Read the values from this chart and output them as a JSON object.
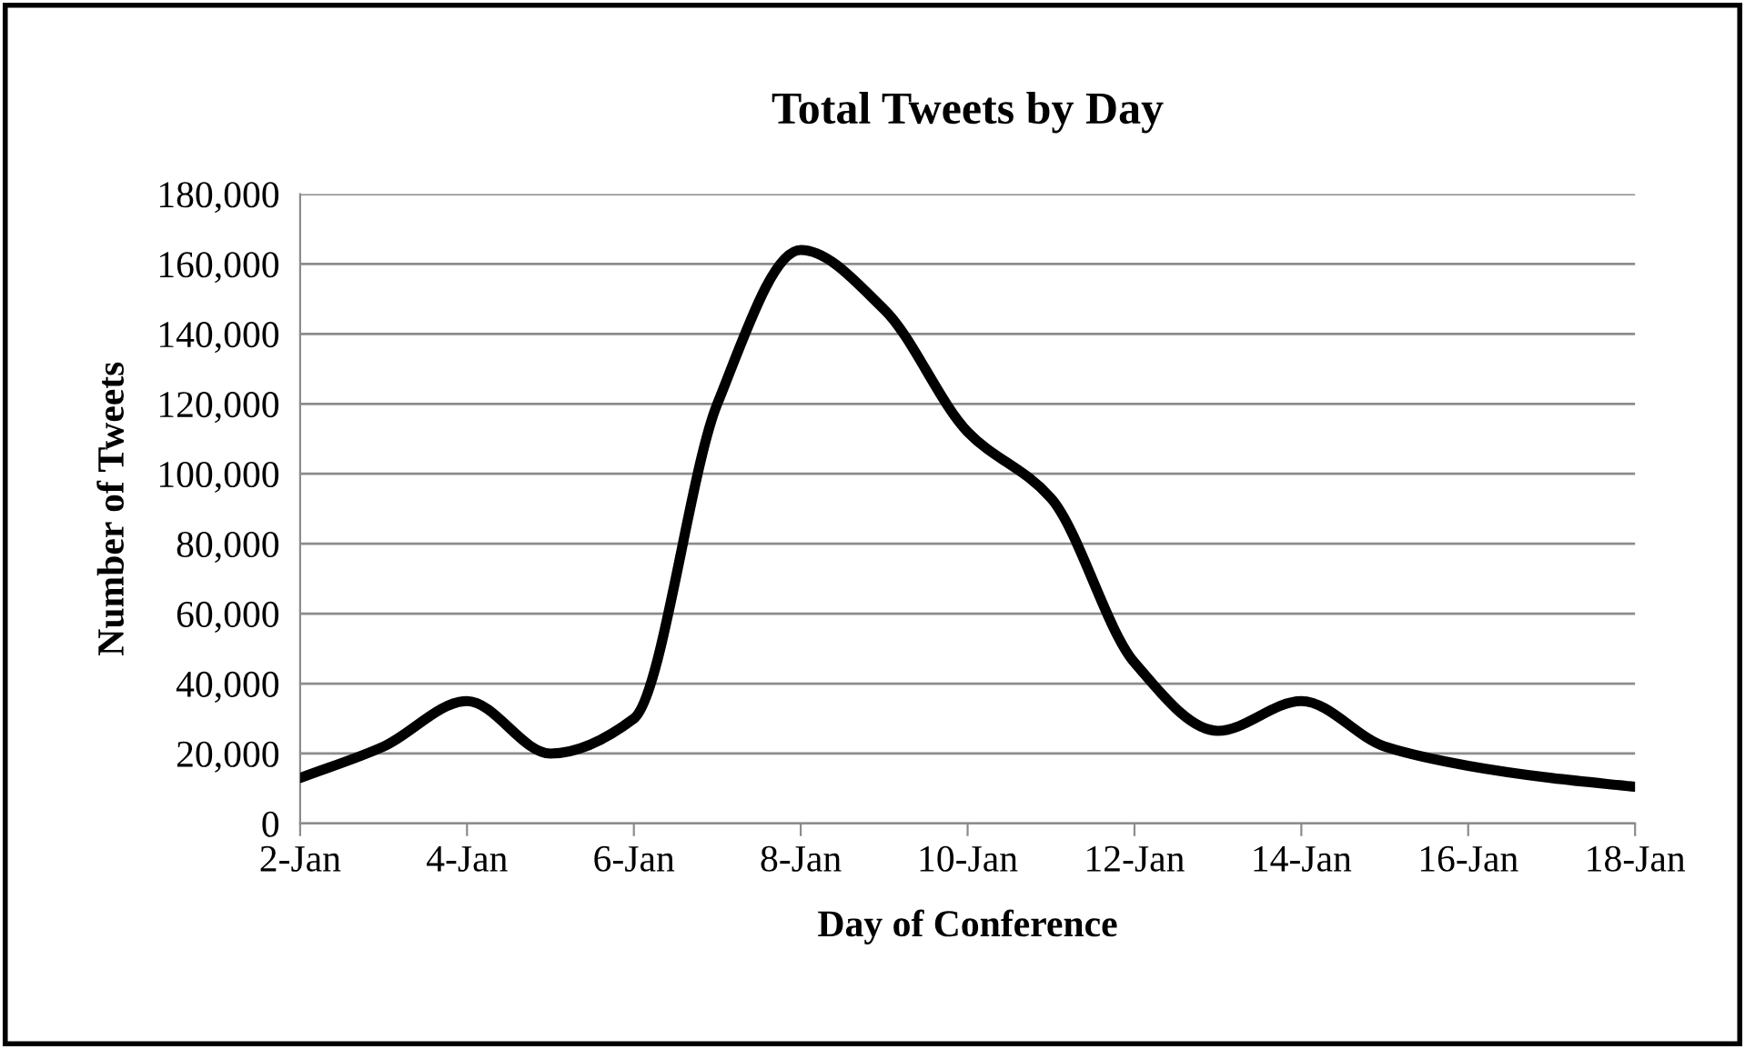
{
  "chart_data": {
    "type": "line",
    "title": "Total Tweets by Day",
    "xlabel": "Day of Conference",
    "ylabel": "Number of Tweets",
    "x": [
      "--01-02",
      "--01-03",
      "--01-04",
      "--01-05",
      "--01-06",
      "--01-07",
      "--01-08",
      "--01-09",
      "--01-10",
      "--01-11",
      "--01-12",
      "--01-13",
      "--01-14",
      "--01-15",
      "--01-16",
      "--01-17",
      "--01-18"
    ],
    "series": [
      {
        "color": "#000000",
        "values": [
          13000,
          22000,
          35000,
          20000,
          30000,
          120000,
          164000,
          147000,
          112000,
          93000,
          46000,
          26500,
          35000,
          22000,
          16500,
          13000,
          10500
        ]
      }
    ],
    "xlim": [
      "--01-02",
      "--01-18"
    ],
    "xticks": [
      {
        "value": "--01-02",
        "label": "2-Jan"
      },
      {
        "value": "--01-04",
        "label": "4-Jan"
      },
      {
        "value": "--01-06",
        "label": "6-Jan"
      },
      {
        "value": "--01-08",
        "label": "8-Jan"
      },
      {
        "value": "--01-10",
        "label": "10-Jan"
      },
      {
        "value": "--01-12",
        "label": "12-Jan"
      },
      {
        "value": "--01-14",
        "label": "14-Jan"
      },
      {
        "value": "--01-16",
        "label": "16-Jan"
      },
      {
        "value": "--01-18",
        "label": "18-Jan"
      }
    ],
    "ylim": [
      0,
      180000
    ],
    "yticks": [
      {
        "value": 0,
        "label": "0"
      },
      {
        "value": 20000,
        "label": "20,000"
      },
      {
        "value": 40000,
        "label": "40,000"
      },
      {
        "value": 60000,
        "label": "60,000"
      },
      {
        "value": 80000,
        "label": "80,000"
      },
      {
        "value": 100000,
        "label": "100,000"
      },
      {
        "value": 120000,
        "label": "120,000"
      },
      {
        "value": 140000,
        "label": "140,000"
      },
      {
        "value": 160000,
        "label": "160,000"
      },
      {
        "value": 180000,
        "label": "180,000"
      }
    ],
    "grid": "y",
    "marker": "none",
    "line_style": "solid"
  }
}
